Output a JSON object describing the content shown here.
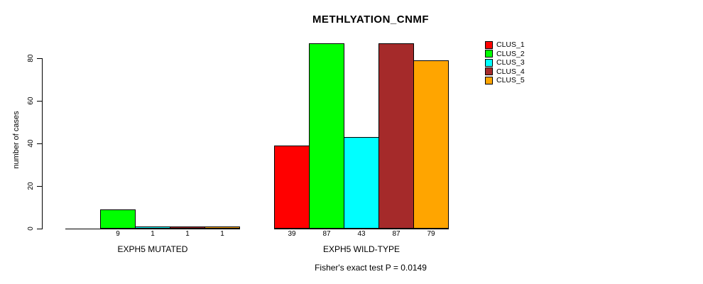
{
  "page": {
    "background": "#FFFFFF"
  },
  "chart_data": {
    "type": "bar",
    "title": "METHLYATION_CNMF",
    "ylabel": "number of cases",
    "xlabel": "",
    "ylim": [
      0,
      87
    ],
    "yticks": [
      0,
      20,
      40,
      60,
      80
    ],
    "grid": false,
    "legend_position": "right-outside",
    "legend": [
      "CLUS_1",
      "CLUS_2",
      "CLUS_3",
      "CLUS_4",
      "CLUS_5"
    ],
    "series_colors": [
      "#FF0000",
      "#00FF00",
      "#00FFFF",
      "#A52A2A",
      "#FFA500"
    ],
    "groups": [
      {
        "label": "EXPH5 MUTATED",
        "values": [
          0,
          9,
          1,
          1,
          1
        ],
        "bar_labels": [
          "",
          "9",
          "1",
          "1",
          "1"
        ]
      },
      {
        "label": "EXPH5 WILD-TYPE",
        "values": [
          39,
          87,
          43,
          87,
          79
        ],
        "bar_labels": [
          "39",
          "87",
          "43",
          "87",
          "79"
        ]
      }
    ],
    "annotation": "Fisher's exact test P = 0.0149",
    "axis_color": "#000000",
    "bar_border_color": "#000000"
  }
}
